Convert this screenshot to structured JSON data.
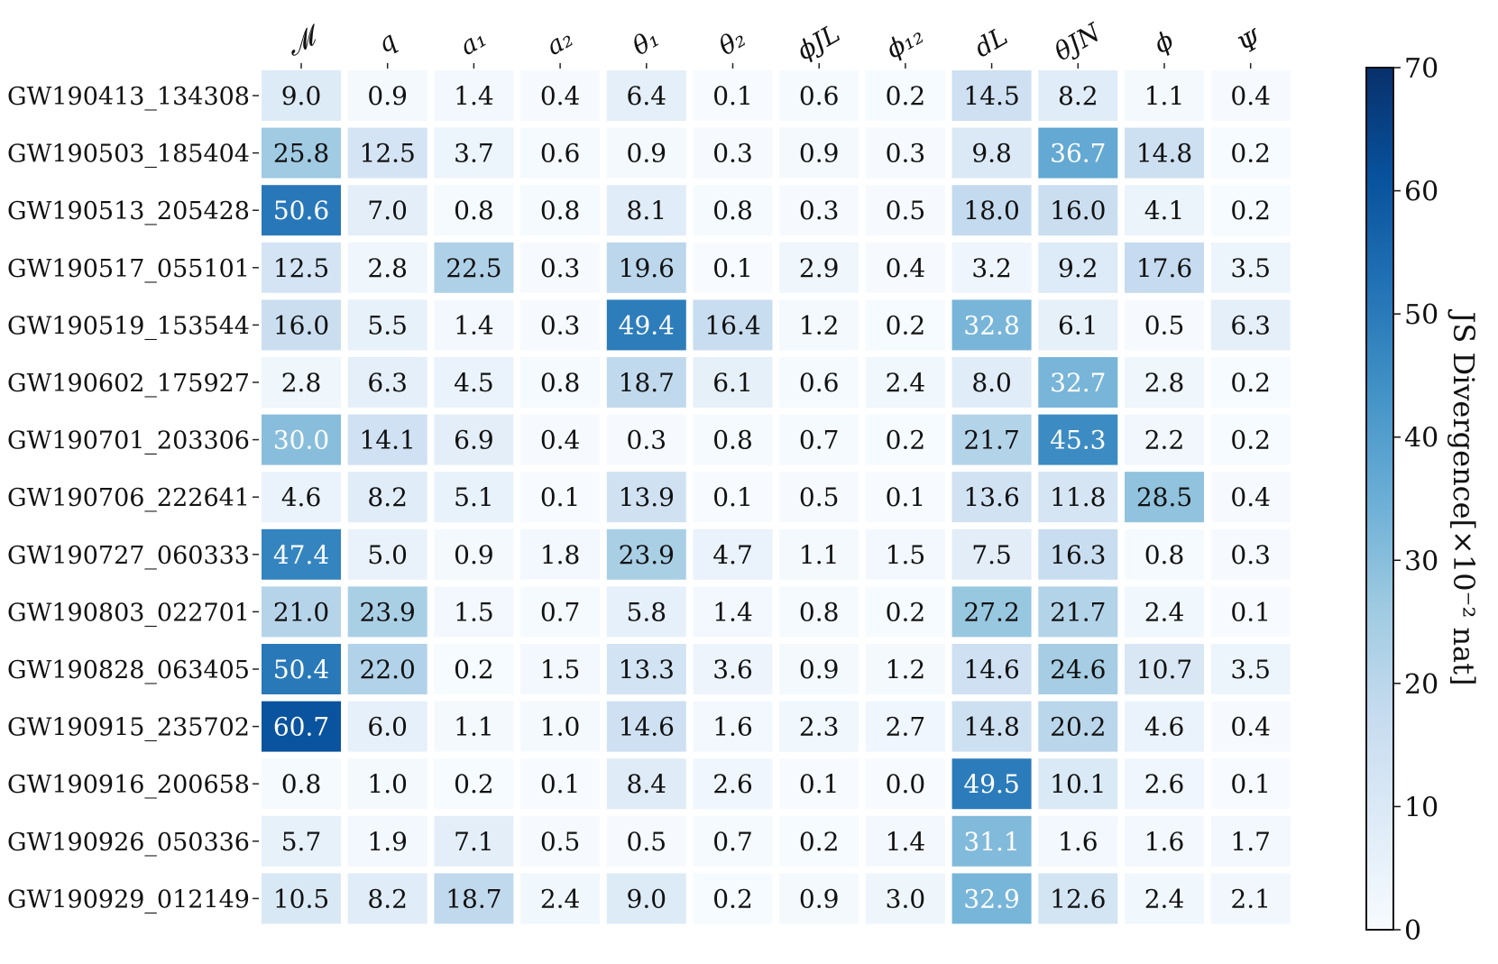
{
  "chart_data": {
    "type": "heatmap",
    "title": "",
    "columns": [
      "𝓜",
      "q",
      "a₁",
      "a₂",
      "θ₁",
      "θ₂",
      "ϕJL",
      "ϕ₁₂",
      "dL",
      "θJN",
      "ϕ",
      "Ψ"
    ],
    "rows": [
      "GW190413_134308",
      "GW190503_185404",
      "GW190513_205428",
      "GW190517_055101",
      "GW190519_153544",
      "GW190602_175927",
      "GW190701_203306",
      "GW190706_222641",
      "GW190727_060333",
      "GW190803_022701",
      "GW190828_063405",
      "GW190915_235702",
      "GW190916_200658",
      "GW190926_050336",
      "GW190929_012149"
    ],
    "values": [
      [
        9.0,
        0.9,
        1.4,
        0.4,
        6.4,
        0.1,
        0.6,
        0.2,
        14.5,
        8.2,
        1.1,
        0.4
      ],
      [
        25.8,
        12.5,
        3.7,
        0.6,
        0.9,
        0.3,
        0.9,
        0.3,
        9.8,
        36.7,
        14.8,
        0.2
      ],
      [
        50.6,
        7.0,
        0.8,
        0.8,
        8.1,
        0.8,
        0.3,
        0.5,
        18.0,
        16.0,
        4.1,
        0.2
      ],
      [
        12.5,
        2.8,
        22.5,
        0.3,
        19.6,
        0.1,
        2.9,
        0.4,
        3.2,
        9.2,
        17.6,
        3.5
      ],
      [
        16.0,
        5.5,
        1.4,
        0.3,
        49.4,
        16.4,
        1.2,
        0.2,
        32.8,
        6.1,
        0.5,
        6.3
      ],
      [
        2.8,
        6.3,
        4.5,
        0.8,
        18.7,
        6.1,
        0.6,
        2.4,
        8.0,
        32.7,
        2.8,
        0.2
      ],
      [
        30.0,
        14.1,
        6.9,
        0.4,
        0.3,
        0.8,
        0.7,
        0.2,
        21.7,
        45.3,
        2.2,
        0.2
      ],
      [
        4.6,
        8.2,
        5.1,
        0.1,
        13.9,
        0.1,
        0.5,
        0.1,
        13.6,
        11.8,
        28.5,
        0.4
      ],
      [
        47.4,
        5.0,
        0.9,
        1.8,
        23.9,
        4.7,
        1.1,
        1.5,
        7.5,
        16.3,
        0.8,
        0.3
      ],
      [
        21.0,
        23.9,
        1.5,
        0.7,
        5.8,
        1.4,
        0.8,
        0.2,
        27.2,
        21.7,
        2.4,
        0.1
      ],
      [
        50.4,
        22.0,
        0.2,
        1.5,
        13.3,
        3.6,
        0.9,
        1.2,
        14.6,
        24.6,
        10.7,
        3.5
      ],
      [
        60.7,
        6.0,
        1.1,
        1.0,
        14.6,
        1.6,
        2.3,
        2.7,
        14.8,
        20.2,
        4.6,
        0.4
      ],
      [
        0.8,
        1.0,
        0.2,
        0.1,
        8.4,
        2.6,
        0.1,
        0.0,
        49.5,
        10.1,
        2.6,
        0.1
      ],
      [
        5.7,
        1.9,
        7.1,
        0.5,
        0.5,
        0.7,
        0.2,
        1.4,
        31.1,
        1.6,
        1.6,
        1.7
      ],
      [
        10.5,
        8.2,
        18.7,
        2.4,
        9.0,
        0.2,
        0.9,
        3.0,
        32.9,
        12.6,
        2.4,
        2.1
      ]
    ],
    "colorbar": {
      "label": "JS Divergence[×10⁻² nat]",
      "range": [
        0,
        70
      ],
      "ticks": [
        0,
        10,
        20,
        30,
        40,
        50,
        60,
        70
      ],
      "colormap": "Blues",
      "color_low": "#f7fbff",
      "color_high": "#08306b"
    }
  }
}
